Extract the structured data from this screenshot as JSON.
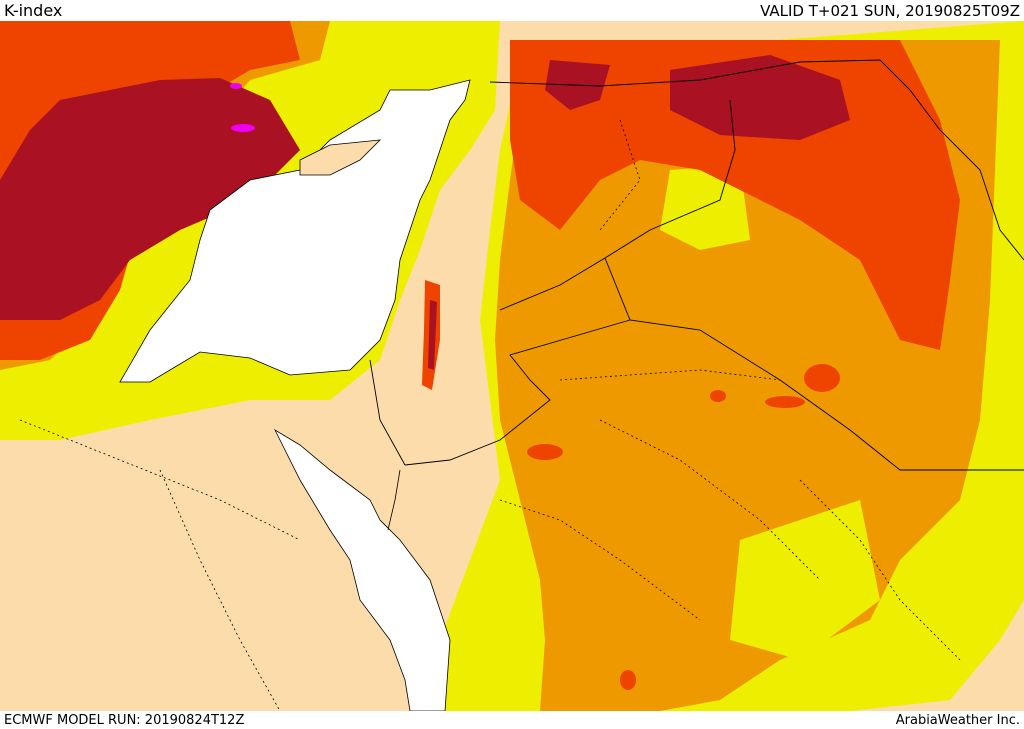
{
  "header": {
    "title": "K-index",
    "valid": "VALID T+021 SUN, 20190825T09Z"
  },
  "footer": {
    "model_run": "ECMWF MODEL RUN: 20190824T12Z",
    "credit": "ArabiaWeather Inc."
  },
  "palette": {
    "land": "#fbdcaa",
    "sea": "#ffffff",
    "yellow": "#eeee00",
    "orange": "#ee9900",
    "red_orange": "#ee4400",
    "dark_red": "#aa1122",
    "magenta": "#ee00ee"
  }
}
